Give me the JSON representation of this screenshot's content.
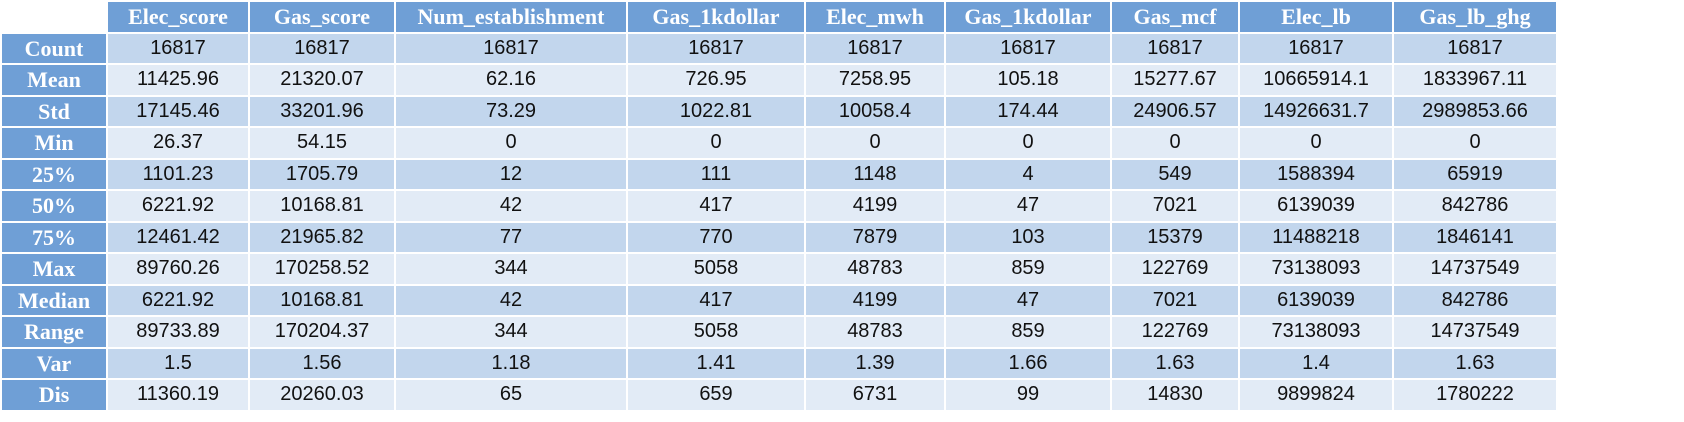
{
  "chart_data": {
    "type": "table",
    "columns": [
      "Elec_score",
      "Gas_score",
      "Num_establishment",
      "Gas_1kdollar",
      "Elec_mwh",
      "Gas_1kdollar",
      "Gas_mcf",
      "Elec_lb",
      "Gas_lb_ghg"
    ],
    "rows": [
      {
        "label": "Count",
        "values": [
          "16817",
          "16817",
          "16817",
          "16817",
          "16817",
          "16817",
          "16817",
          "16817",
          "16817"
        ]
      },
      {
        "label": "Mean",
        "values": [
          "11425.96",
          "21320.07",
          "62.16",
          "726.95",
          "7258.95",
          "105.18",
          "15277.67",
          "10665914.1",
          "1833967.11"
        ]
      },
      {
        "label": "Std",
        "values": [
          "17145.46",
          "33201.96",
          "73.29",
          "1022.81",
          "10058.4",
          "174.44",
          "24906.57",
          "14926631.7",
          "2989853.66"
        ]
      },
      {
        "label": "Min",
        "values": [
          "26.37",
          "54.15",
          "0",
          "0",
          "0",
          "0",
          "0",
          "0",
          "0"
        ]
      },
      {
        "label": "25%",
        "values": [
          "1101.23",
          "1705.79",
          "12",
          "111",
          "1148",
          "4",
          "549",
          "1588394",
          "65919"
        ]
      },
      {
        "label": "50%",
        "values": [
          "6221.92",
          "10168.81",
          "42",
          "417",
          "4199",
          "47",
          "7021",
          "6139039",
          "842786"
        ]
      },
      {
        "label": "75%",
        "values": [
          "12461.42",
          "21965.82",
          "77",
          "770",
          "7879",
          "103",
          "15379",
          "11488218",
          "1846141"
        ]
      },
      {
        "label": "Max",
        "values": [
          "89760.26",
          "170258.52",
          "344",
          "5058",
          "48783",
          "859",
          "122769",
          "73138093",
          "14737549"
        ]
      },
      {
        "label": "Median",
        "values": [
          "6221.92",
          "10168.81",
          "42",
          "417",
          "4199",
          "47",
          "7021",
          "6139039",
          "842786"
        ]
      },
      {
        "label": "Range",
        "values": [
          "89733.89",
          "170204.37",
          "344",
          "5058",
          "48783",
          "859",
          "122769",
          "73138093",
          "14737549"
        ]
      },
      {
        "label": "Var",
        "values": [
          "1.5",
          "1.56",
          "1.18",
          "1.41",
          "1.39",
          "1.66",
          "1.63",
          "1.4",
          "1.63"
        ]
      },
      {
        "label": "Dis",
        "values": [
          "11360.19",
          "20260.03",
          "65",
          "659",
          "6731",
          "99",
          "14830",
          "9899824",
          "1780222"
        ]
      }
    ]
  },
  "colors": {
    "header": "#6f9fd6",
    "band_dark": "#c2d6ed",
    "band_light": "#e2ebf6"
  }
}
